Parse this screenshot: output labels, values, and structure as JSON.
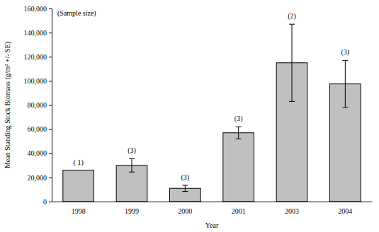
{
  "chart_data": {
    "type": "bar",
    "annotation": "(Sample size)",
    "x_label": "Year",
    "y_label": "Mean Standing Stock Biomass (g/m² +/- SE)",
    "categories": [
      "1998",
      "1999",
      "2000",
      "2001",
      "2003",
      "2004"
    ],
    "values": [
      26000,
      30000,
      11000,
      57000,
      115000,
      97500
    ],
    "errors": [
      null,
      5500,
      2500,
      5000,
      32000,
      19500
    ],
    "sample_size_labels": [
      "( 1)",
      "(3)",
      "(3)",
      "(3)",
      "(2)",
      "(3)"
    ],
    "color": "#c0c0c0",
    "ylim": [
      0,
      160000
    ],
    "yticks": [
      0,
      {
        "value": 20000,
        "label": "20,000"
      },
      {
        "value": 40000,
        "label": "40,000"
      },
      {
        "value": 60000,
        "label": "60,000"
      },
      {
        "value": 80000,
        "label": "80,000"
      },
      {
        "value": 100000,
        "label": "100,000"
      },
      {
        "value": 120000,
        "label": "120,000"
      },
      {
        "value": 140000,
        "label": "140,000"
      },
      {
        "value": 160000,
        "label": "160,000"
      }
    ],
    "grid": false
  }
}
